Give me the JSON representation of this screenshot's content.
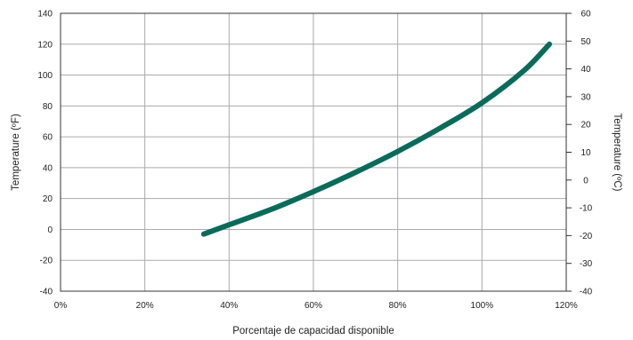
{
  "chart_data": {
    "type": "line",
    "xlabel": "Porcentaje de capacidad disponible",
    "ylabel": "Temperature (ºF)",
    "ylabel_right": "Temperature (ºC)",
    "xlim": [
      0,
      120
    ],
    "ylim": [
      -40,
      140
    ],
    "ylim_right": [
      -40,
      60
    ],
    "x_ticks": [
      0,
      20,
      40,
      60,
      80,
      100,
      120
    ],
    "x_tick_labels": [
      "0%",
      "20%",
      "40%",
      "60%",
      "80%",
      "100%",
      "120%"
    ],
    "y_ticks": [
      -40,
      -20,
      0,
      20,
      40,
      60,
      80,
      100,
      120,
      140
    ],
    "y_tick_labels": [
      "-40",
      "-20",
      "0",
      "20",
      "40",
      "60",
      "80",
      "100",
      "120",
      "140"
    ],
    "y_right_ticks": [
      -40,
      -30,
      -20,
      -10,
      0,
      10,
      20,
      30,
      40,
      50,
      60
    ],
    "y_right_tick_labels": [
      "-40",
      "-30",
      "-20",
      "-10",
      "0",
      "10",
      "20",
      "30",
      "40",
      "50",
      "60"
    ],
    "grid": true,
    "line_color": "#0a6b5a",
    "grid_color": "#aaaaaa",
    "series": [
      {
        "x": [
          34,
          40,
          50,
          60,
          70,
          80,
          90,
          100,
          110,
          116
        ],
        "values": [
          -3,
          3,
          13,
          24.5,
          37,
          50.5,
          65.5,
          82,
          103,
          120
        ]
      }
    ]
  }
}
